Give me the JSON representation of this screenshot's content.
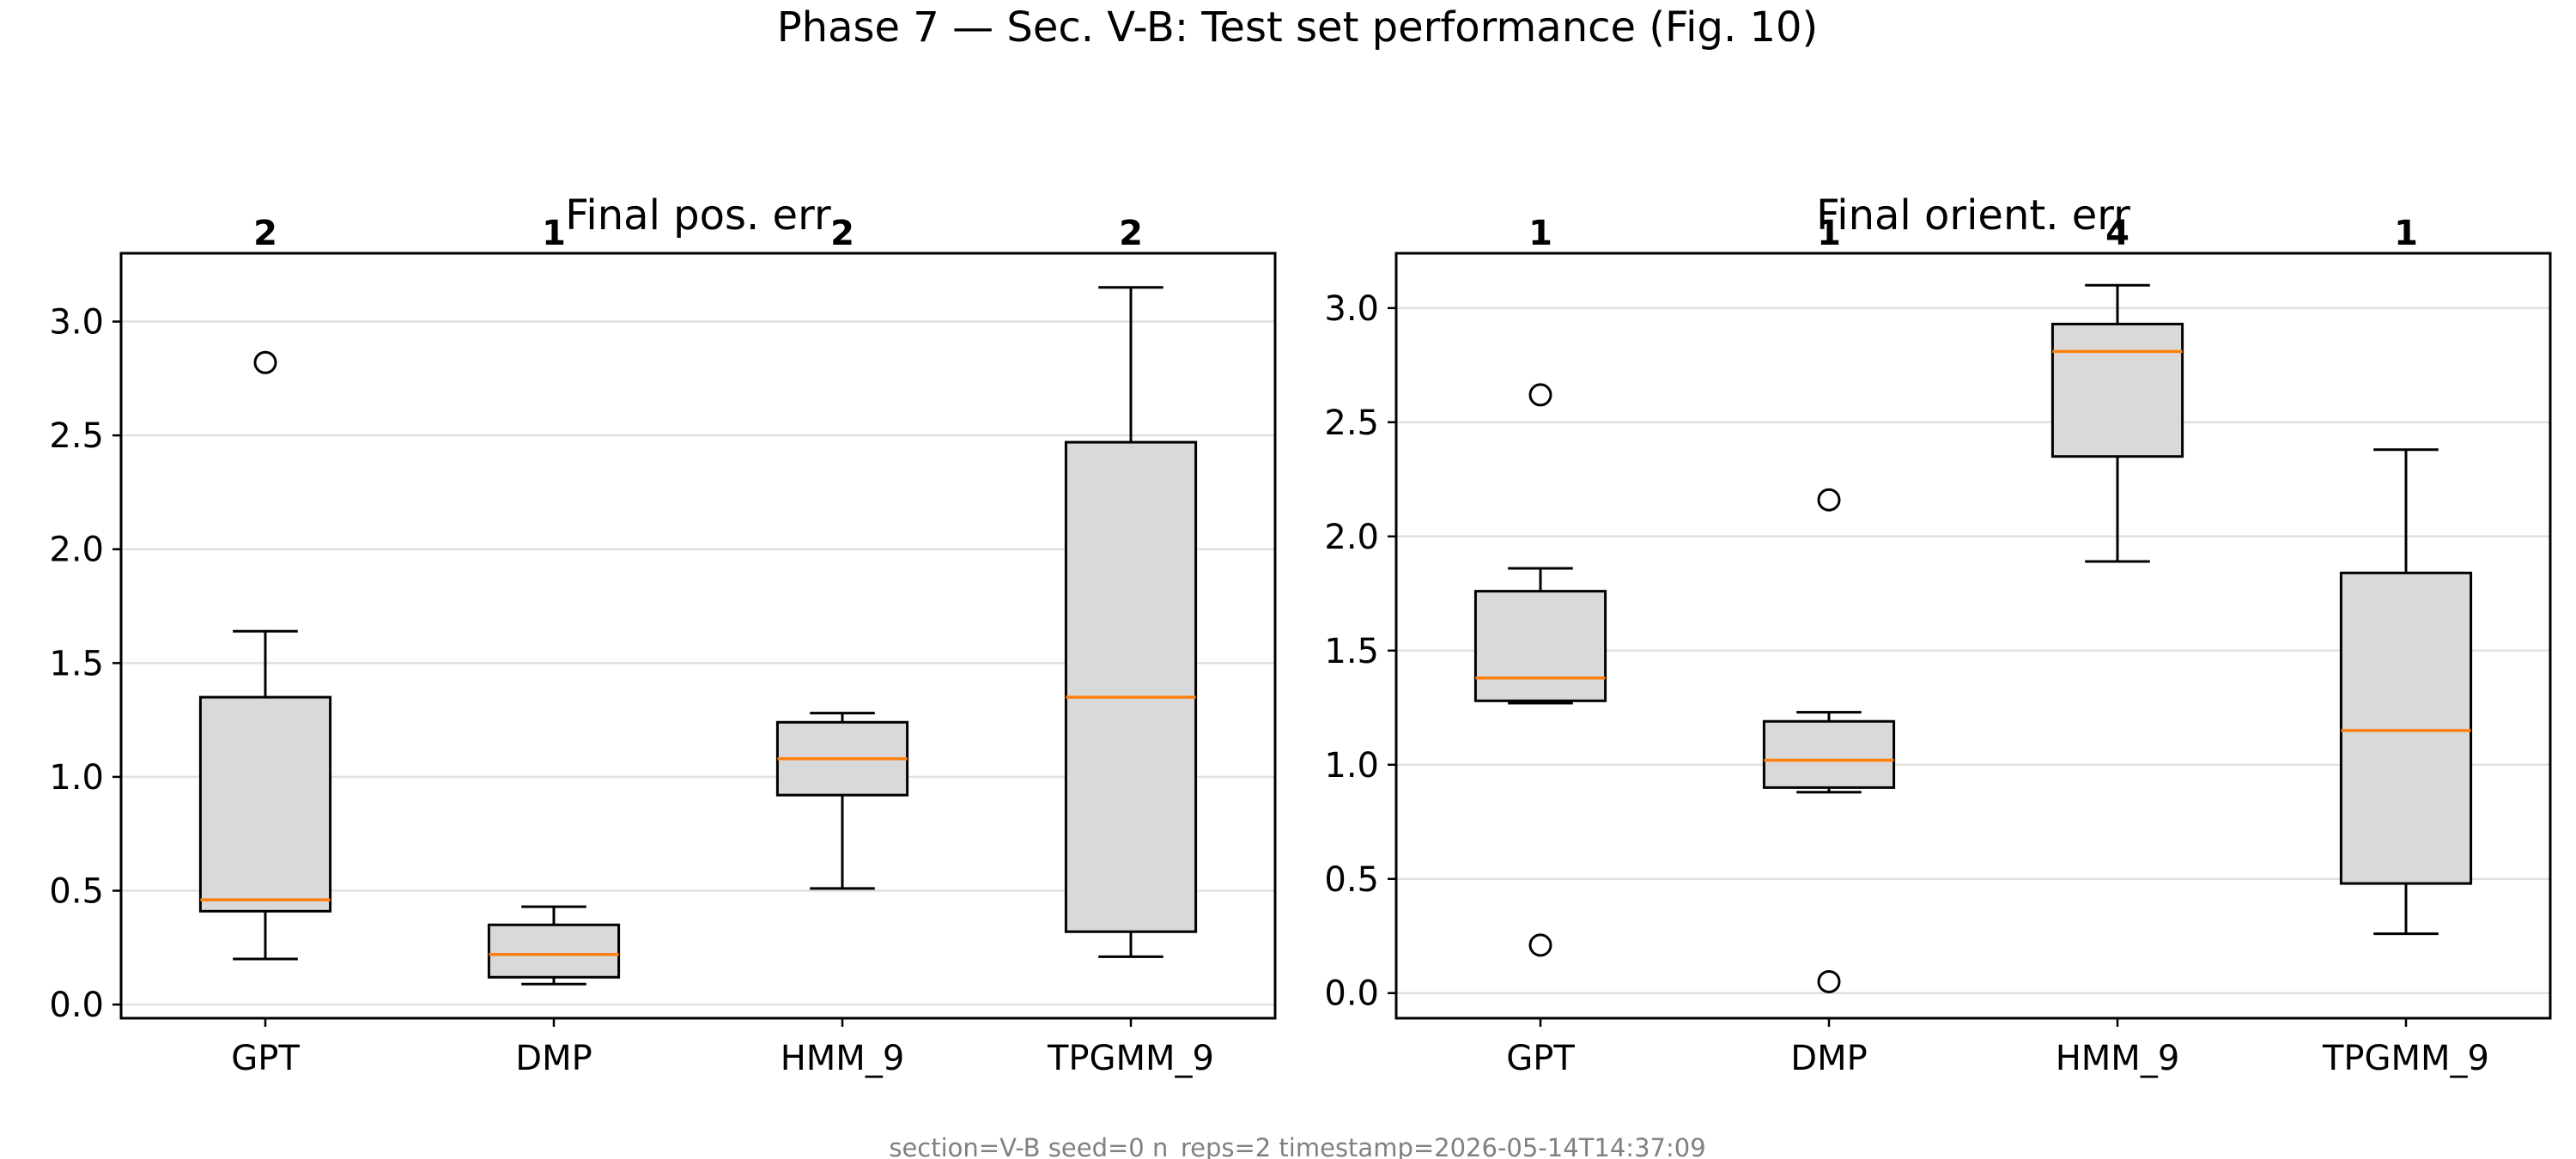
{
  "figure": {
    "title": "Phase 7 — Sec. V-B: Test set performance (Fig. 10)",
    "footer": "section=V-B  seed=0  n_reps=2  timestamp=2026-05-14T14:37:09"
  },
  "chart_data": [
    {
      "type": "box",
      "title": "Final pos. err",
      "xlabel": "",
      "ylabel": "",
      "ylim": [
        -0.06,
        3.3
      ],
      "yticks": [
        "0.0",
        "0.5",
        "1.0",
        "1.5",
        "2.0",
        "2.5",
        "3.0"
      ],
      "grid": "y",
      "categories": [
        "GPT",
        "DMP",
        "HMM_9",
        "TPGMM_9"
      ],
      "top_labels": [
        "2",
        "1",
        "2",
        "2"
      ],
      "boxes": [
        {
          "name": "GPT",
          "whisker_low": 0.2,
          "q1": 0.41,
          "median": 0.46,
          "q3": 1.35,
          "whisker_high": 1.64,
          "outliers": [
            2.82
          ]
        },
        {
          "name": "DMP",
          "whisker_low": 0.09,
          "q1": 0.12,
          "median": 0.22,
          "q3": 0.35,
          "whisker_high": 0.43,
          "outliers": []
        },
        {
          "name": "HMM_9",
          "whisker_low": 0.51,
          "q1": 0.92,
          "median": 1.08,
          "q3": 1.24,
          "whisker_high": 1.28,
          "outliers": []
        },
        {
          "name": "TPGMM_9",
          "whisker_low": 0.21,
          "q1": 0.32,
          "median": 1.35,
          "q3": 2.47,
          "whisker_high": 3.15,
          "outliers": []
        }
      ],
      "colors": {
        "box_fill": "#d9d9d9",
        "median": "#ff7f0e",
        "grid": "#e0e0e0"
      }
    },
    {
      "type": "box",
      "title": "Final orient. err",
      "xlabel": "",
      "ylabel": "",
      "ylim": [
        -0.11,
        3.24
      ],
      "yticks": [
        "0.0",
        "0.5",
        "1.0",
        "1.5",
        "2.0",
        "2.5",
        "3.0"
      ],
      "grid": "y",
      "categories": [
        "GPT",
        "DMP",
        "HMM_9",
        "TPGMM_9"
      ],
      "top_labels": [
        "1",
        "1",
        "4",
        "1"
      ],
      "boxes": [
        {
          "name": "GPT",
          "whisker_low": 1.27,
          "q1": 1.28,
          "median": 1.38,
          "q3": 1.76,
          "whisker_high": 1.86,
          "outliers": [
            2.62,
            0.21
          ]
        },
        {
          "name": "DMP",
          "whisker_low": 0.88,
          "q1": 0.9,
          "median": 1.02,
          "q3": 1.19,
          "whisker_high": 1.23,
          "outliers": [
            2.16,
            0.05
          ]
        },
        {
          "name": "HMM_9",
          "whisker_low": 1.89,
          "q1": 2.35,
          "median": 2.81,
          "q3": 2.93,
          "whisker_high": 3.1,
          "outliers": []
        },
        {
          "name": "TPGMM_9",
          "whisker_low": 0.26,
          "q1": 0.48,
          "median": 1.15,
          "q3": 1.84,
          "whisker_high": 2.38,
          "outliers": []
        }
      ],
      "colors": {
        "box_fill": "#d9d9d9",
        "median": "#ff7f0e",
        "grid": "#e0e0e0"
      }
    }
  ]
}
